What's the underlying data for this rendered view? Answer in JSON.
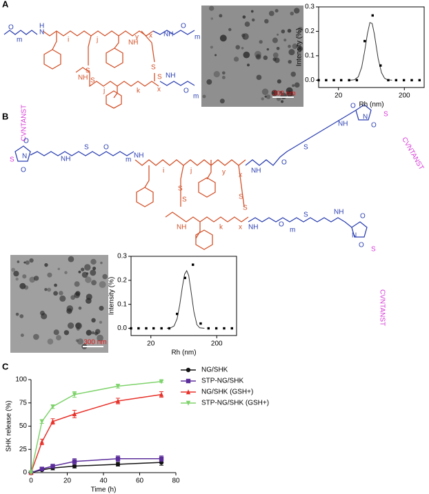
{
  "panels": [
    "A",
    "B",
    "C"
  ],
  "structure_a_labels": [
    "O",
    "m",
    "N",
    "H",
    "i",
    "j",
    "S",
    "S",
    "NH",
    "y",
    "x",
    "NH",
    "O",
    "m",
    "NH",
    "j",
    "k",
    "x",
    "NH",
    "O",
    "m",
    "S",
    "S"
  ],
  "structure_b_labels": [
    "CVNTANST",
    "S",
    "N",
    "O",
    "O",
    "NH",
    "S",
    "O",
    "m",
    "NH",
    "i",
    "j",
    "S",
    "S",
    "y",
    "x",
    "NH",
    "O",
    "S",
    "NH",
    "O",
    "N",
    "O",
    "S",
    "CVNTANST",
    "S",
    "S",
    "NH",
    "k",
    "x",
    "NH",
    "O",
    "m",
    "S",
    "NH",
    "O",
    "N",
    "O",
    "S",
    "CVNTANST"
  ],
  "tem_scale_labels": [
    "300 nm",
    "300 nm"
  ],
  "chart_data": [
    {
      "type": "scatter",
      "x_label": "Rh (nm)",
      "y_label": "Intensity (%)",
      "xscale": "log",
      "xlim": [
        10,
        400
      ],
      "xticks": [
        20,
        200
      ],
      "ylim": [
        -0.03,
        0.3
      ],
      "yticks": [
        {
          "value": 0,
          "label": "0.0"
        },
        0.1,
        0.2,
        0.3
      ],
      "frame": true,
      "color": "#000000",
      "points": {
        "x": [
          10,
          13,
          17,
          22,
          29,
          38,
          50,
          66,
          87,
          114,
          150,
          197,
          259,
          340
        ],
        "values": [
          0,
          0,
          0,
          0,
          0,
          0,
          0.16,
          0.265,
          0.06,
          0,
          0,
          0,
          0,
          0
        ]
      },
      "fit": {
        "x": [
          30,
          35,
          40,
          45,
          50,
          55,
          60,
          65,
          70,
          80,
          90,
          100,
          110,
          130
        ],
        "values": [
          0,
          0.002,
          0.014,
          0.053,
          0.12,
          0.19,
          0.236,
          0.232,
          0.19,
          0.09,
          0.031,
          0.008,
          0.002,
          0
        ]
      }
    },
    {
      "type": "scatter",
      "x_label": "Rh (nm)",
      "y_label": "Intensity (%)",
      "xscale": "log",
      "xlim": [
        10,
        400
      ],
      "xticks": [
        20,
        200
      ],
      "ylim": [
        -0.03,
        0.3
      ],
      "yticks": [
        {
          "value": 0,
          "label": "0.0"
        },
        0.1,
        0.2,
        0.3
      ],
      "frame": true,
      "color": "#000000",
      "points": {
        "x": [
          10,
          13,
          17,
          22,
          29,
          38,
          50,
          66,
          87,
          114,
          150,
          197,
          259,
          340
        ],
        "values": [
          0,
          0,
          0,
          0,
          0,
          0,
          0.06,
          0.21,
          0.265,
          0.02,
          0,
          0,
          0,
          0
        ]
      },
      "fit": {
        "x": [
          35,
          40,
          45,
          50,
          55,
          60,
          65,
          70,
          75,
          80,
          90,
          100,
          110,
          130
        ],
        "values": [
          0,
          0.002,
          0.01,
          0.04,
          0.1,
          0.17,
          0.225,
          0.24,
          0.22,
          0.17,
          0.07,
          0.015,
          0.002,
          0
        ]
      }
    },
    {
      "type": "line",
      "x_label": "Time (h)",
      "y_label": "SHK release (%)",
      "xlim": [
        0,
        80
      ],
      "xticks": [
        0,
        20,
        40,
        60,
        80
      ],
      "ylim": [
        0,
        100
      ],
      "yticks": [
        0,
        25,
        50,
        75,
        100
      ],
      "frame": false,
      "legend": "right",
      "x": [
        0,
        6,
        12,
        24,
        48,
        72
      ],
      "series": [
        {
          "name": "NG/SHK",
          "color": "#111111",
          "marker": "circle",
          "values": [
            0,
            3,
            5,
            7,
            9,
            11
          ],
          "errors": [
            0,
            1,
            2,
            2,
            2,
            3
          ]
        },
        {
          "name": "STP-NG/SHK",
          "color": "#5b2d9b",
          "marker": "square",
          "values": [
            0,
            4,
            7,
            12,
            15,
            15
          ],
          "errors": [
            0,
            1,
            2,
            3,
            3,
            3
          ]
        },
        {
          "name": "NG/SHK (GSH+)",
          "color": "#e8312a",
          "marker": "triangle-up",
          "values": [
            0,
            33,
            55,
            63,
            77,
            84
          ],
          "errors": [
            0,
            3,
            3,
            4,
            3,
            3
          ]
        },
        {
          "name": "STP-NG/SHK (GSH+)",
          "color": "#7ed36b",
          "marker": "triangle-down",
          "values": [
            0,
            55,
            71,
            84,
            93,
            98
          ],
          "errors": [
            0,
            2,
            2,
            3,
            2,
            1
          ]
        }
      ]
    }
  ]
}
